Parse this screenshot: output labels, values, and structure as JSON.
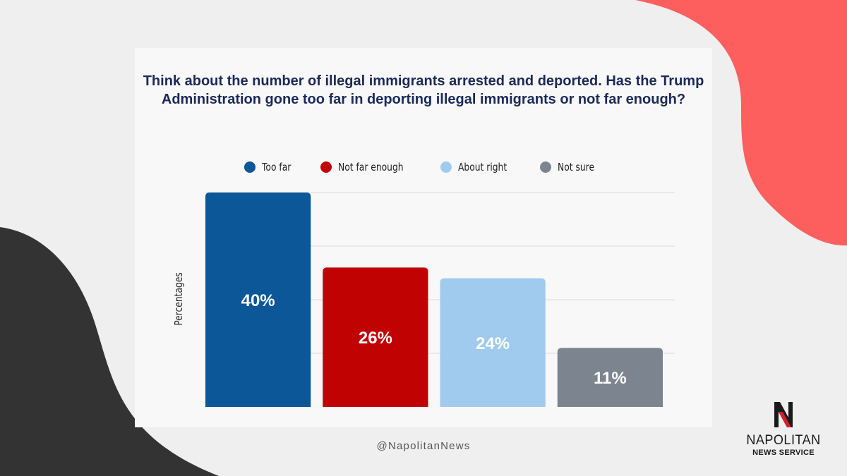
{
  "colors": {
    "background": "#efefef",
    "card": "#f8f8f9",
    "coral_shape": "#fd5e5e",
    "dark_shape": "#333333",
    "title": "#1b2a57",
    "gridline": "#dadada"
  },
  "chart_data": {
    "type": "bar",
    "title": "Think about the number of illegal immigrants arrested and deported. Has the Trump Administration gone too far in deporting illegal immigrants or not far enough?",
    "xlabel": "",
    "ylabel": "Percentages",
    "ylim": [
      0,
      40
    ],
    "grid": true,
    "legend_position": "top-center",
    "categories": [
      "Too far",
      "Not far enough",
      "About right",
      "Not sure"
    ],
    "values": [
      40,
      26,
      24,
      11
    ],
    "data_labels": [
      "40%",
      "26%",
      "24%",
      "11%"
    ],
    "colors": [
      "#0b5797",
      "#c10202",
      "#a0caee",
      "#7c8490"
    ],
    "label_color": "#ffffff"
  },
  "footer": {
    "handle": "@NapolitanNews"
  },
  "logo": {
    "name": "NAPOLITAN",
    "subtitle": "NEWS SERVICE",
    "icon": "n-logo-icon"
  }
}
